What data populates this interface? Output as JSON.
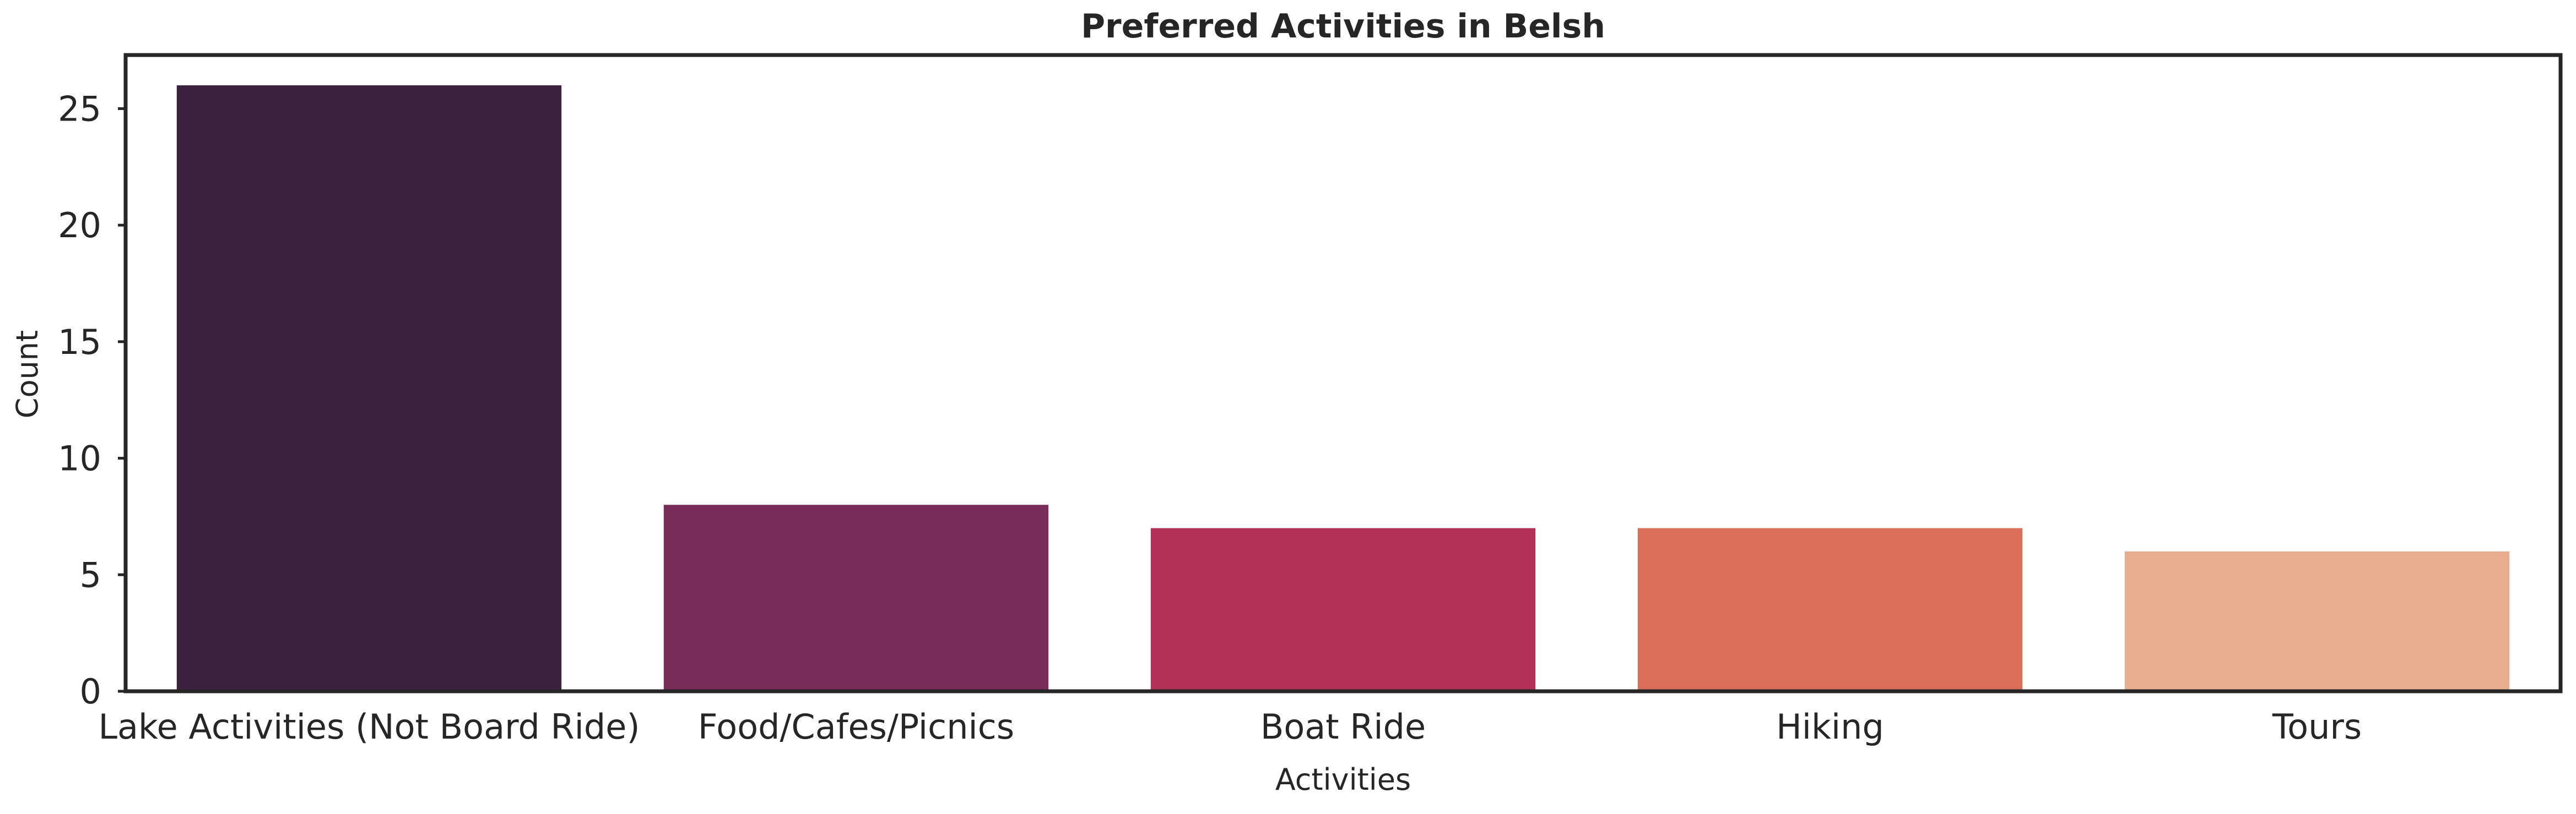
{
  "chart_data": {
    "type": "bar",
    "title": "Preferred Activities in Belsh",
    "xlabel": "Activities",
    "ylabel": "Count",
    "categories": [
      "Lake Activities (Not Board Ride)",
      "Food/Cafes/Picnics",
      "Boat Ride",
      "Hiking",
      "Tours"
    ],
    "values": [
      26,
      8,
      7,
      7,
      6
    ],
    "colors": [
      "#3b213d",
      "#782c58",
      "#b33157",
      "#da6e58",
      "#e9ae8f"
    ],
    "yticks": [
      0,
      5,
      10,
      15,
      20,
      25
    ],
    "ylim": [
      0,
      27.3
    ],
    "grid": false,
    "legend": "none"
  }
}
